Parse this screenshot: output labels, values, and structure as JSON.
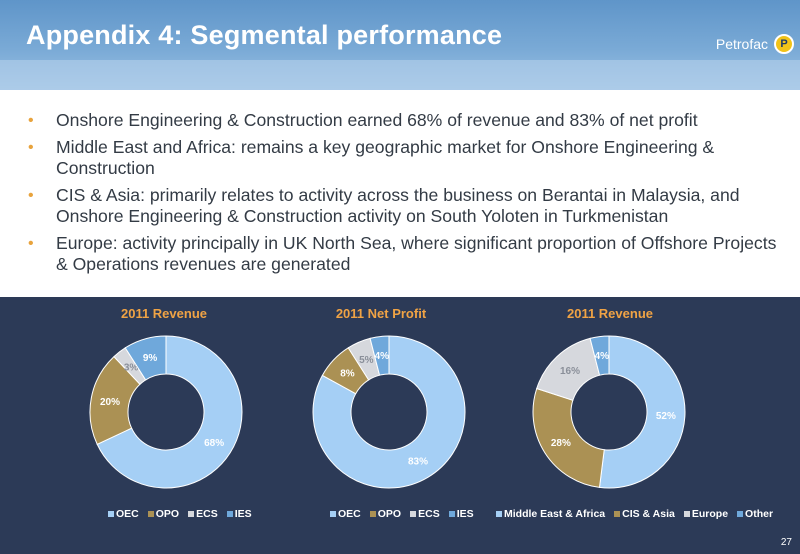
{
  "slide": {
    "title": "Appendix 4: Segmental performance",
    "brand": "Petrofac",
    "brand_mark": "P",
    "page_number": "27"
  },
  "bullets": [
    "Onshore Engineering & Construction earned 68% of revenue and 83% of net profit",
    "Middle East and Africa: remains a key geographic market for Onshore Engineering & Construction",
    "CIS & Asia: primarily relates to activity across the business on Berantai in Malaysia, and Onshore Engineering & Construction activity on South Yoloten in Turkmenistan",
    "Europe: activity principally in UK North Sea, where significant proportion of Offshore Projects & Operations revenues are generated"
  ],
  "colors": {
    "header": "#6a9fd2",
    "panel": "#2c3a57",
    "bullet": "#e8a33d",
    "chart_title": "#f0a345"
  },
  "chart_data": [
    {
      "type": "pie",
      "title": "2011 Revenue",
      "categories": [
        "OEC",
        "OPO",
        "ECS",
        "IES"
      ],
      "values": [
        68,
        20,
        3,
        9
      ],
      "labels": [
        "68%",
        "20%",
        "3%",
        "9%"
      ],
      "colors": [
        "#a5cff5",
        "#ab9154",
        "#d6d8dd",
        "#6fa8db"
      ],
      "legend": "bottom"
    },
    {
      "type": "pie",
      "title": "2011 Net Profit",
      "categories": [
        "OEC",
        "OPO",
        "ECS",
        "IES"
      ],
      "values": [
        83,
        8,
        5,
        4
      ],
      "labels": [
        "83%",
        "8%",
        "5%",
        "4%"
      ],
      "colors": [
        "#a5cff5",
        "#ab9154",
        "#d6d8dd",
        "#6fa8db"
      ],
      "legend": "bottom"
    },
    {
      "type": "pie",
      "title": "2011 Revenue",
      "categories": [
        "Middle East & Africa",
        "CIS & Asia",
        "Europe",
        "Other"
      ],
      "values": [
        52,
        28,
        16,
        4
      ],
      "labels": [
        "52%",
        "28%",
        "16%",
        "4%"
      ],
      "colors": [
        "#a5cff5",
        "#ab9154",
        "#d6d8dd",
        "#6fa8db"
      ],
      "legend": "bottom"
    }
  ]
}
